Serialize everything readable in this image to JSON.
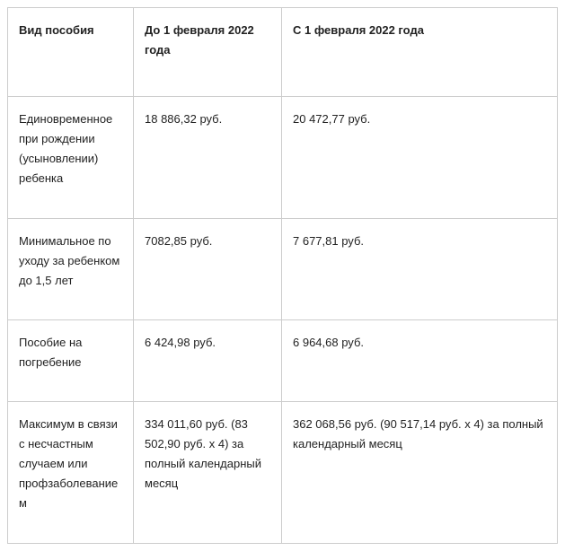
{
  "table": {
    "columns": [
      "Вид пособия",
      "До 1 февраля 2022 года",
      "С 1 февраля 2022 года"
    ],
    "rows": [
      {
        "type": "Единовременное при рождении (усыновлении) ребенка",
        "before": "18 886,32 руб.",
        "after": "20 472,77 руб."
      },
      {
        "type": "Минимальное по уходу за ребенком до 1,5 лет",
        "before": "7082,85 руб.",
        "after": "7 677,81 руб."
      },
      {
        "type": "Пособие на погребение",
        "before": "6 424,98 руб.",
        "after": "6 964,68 руб."
      },
      {
        "type": "Максимум в связи с несчастным случаем или профзаболеванием",
        "before": "334 011,60 руб. (83 502,90 руб. х 4) за полный календарный месяц",
        "after": "362 068,56 руб. (90 517,14 руб. х 4) за полный календарный месяц"
      }
    ]
  }
}
